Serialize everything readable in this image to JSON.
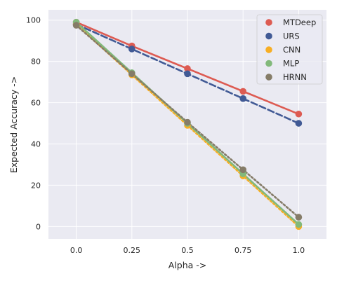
{
  "chart_data": {
    "type": "line",
    "xlabel": "Alpha ->",
    "ylabel": "Expected Accuracy ->",
    "x": [
      0.0,
      0.25,
      0.5,
      0.75,
      1.0
    ],
    "x_tick_labels": [
      "0.0",
      "0.25",
      "0.5",
      "0.75",
      "1.0"
    ],
    "y_ticks": [
      0,
      20,
      40,
      60,
      80,
      100
    ],
    "y_tick_labels": [
      "0",
      "20",
      "40",
      "60",
      "80",
      "100"
    ],
    "xlim": [
      -0.125,
      1.125
    ],
    "ylim": [
      -6,
      105
    ],
    "grid": true,
    "legend_position": "top-right",
    "series": [
      {
        "name": "MTDeep",
        "color": "#dd5b52",
        "dash": "solid",
        "values": [
          99,
          87.5,
          76.5,
          65.5,
          54.5
        ]
      },
      {
        "name": "URS",
        "color": "#415a95",
        "dash": "dashed",
        "values": [
          98,
          86,
          74,
          62,
          50
        ]
      },
      {
        "name": "CNN",
        "color": "#f7ae24",
        "dash": "dotted",
        "values": [
          98,
          73.5,
          49,
          24.5,
          0
        ]
      },
      {
        "name": "MLP",
        "color": "#82b97b",
        "dash": "solid",
        "values": [
          99,
          74.5,
          50,
          25.5,
          1
        ]
      },
      {
        "name": "HRNN",
        "color": "#857c68",
        "dash": "dotted",
        "values": [
          97.5,
          74,
          50.5,
          27.5,
          4.5
        ]
      }
    ]
  }
}
